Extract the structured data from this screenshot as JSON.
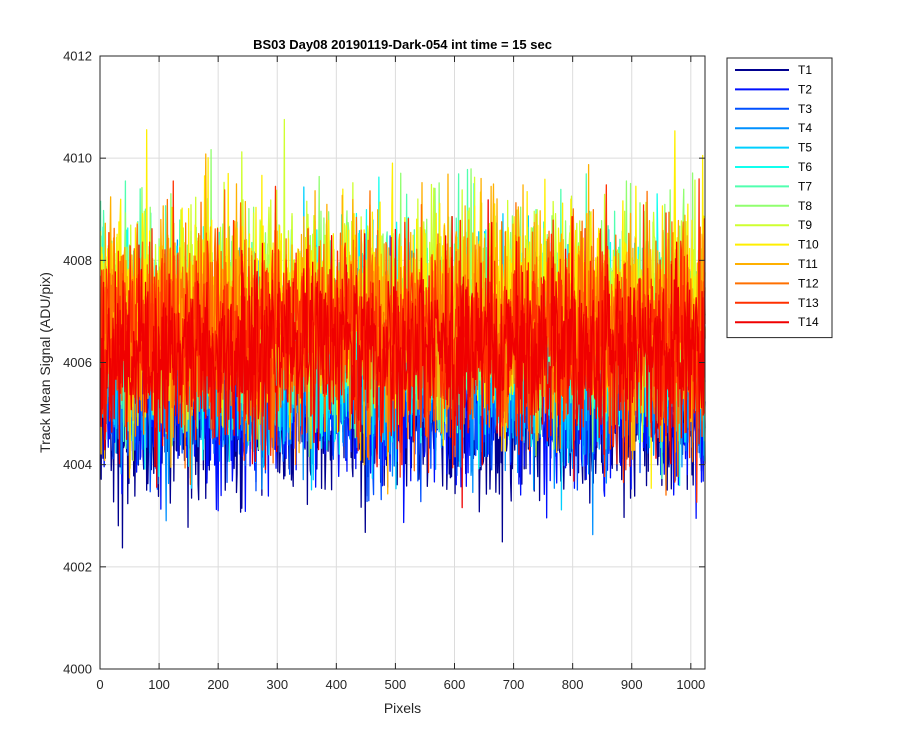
{
  "chart_data": {
    "type": "line",
    "title": "BS03 Day08 20190119-Dark-054 int time = 15 sec",
    "xlabel": "Pixels",
    "ylabel": "Track Mean Signal (ADU/pix)",
    "xlim": [
      0,
      1024
    ],
    "ylim": [
      4000,
      4012
    ],
    "xticks": [
      0,
      100,
      200,
      300,
      400,
      500,
      600,
      700,
      800,
      900,
      1000
    ],
    "yticks": [
      4000,
      4002,
      4004,
      4006,
      4008,
      4010,
      4012
    ],
    "grid": true,
    "legend_position": "outside-top-right",
    "series": [
      {
        "name": "T1",
        "color": "#00008f",
        "mean": 4005.0,
        "spread": 0.85
      },
      {
        "name": "T2",
        "color": "#0010ff",
        "mean": 4005.3,
        "spread": 0.85
      },
      {
        "name": "T3",
        "color": "#0050ff",
        "mean": 4005.6,
        "spread": 0.85
      },
      {
        "name": "T4",
        "color": "#0090ff",
        "mean": 4005.9,
        "spread": 0.9
      },
      {
        "name": "T5",
        "color": "#00d0ff",
        "mean": 4006.2,
        "spread": 0.95
      },
      {
        "name": "T6",
        "color": "#10ffef",
        "mean": 4006.5,
        "spread": 0.95
      },
      {
        "name": "T7",
        "color": "#50ffaf",
        "mean": 4006.7,
        "spread": 0.95
      },
      {
        "name": "T8",
        "color": "#90ff6f",
        "mean": 4006.9,
        "spread": 1.0
      },
      {
        "name": "T9",
        "color": "#cfff30",
        "mean": 4007.0,
        "spread": 1.0
      },
      {
        "name": "T10",
        "color": "#ffef00",
        "mean": 4007.0,
        "spread": 1.0
      },
      {
        "name": "T11",
        "color": "#ffb000",
        "mean": 4006.8,
        "spread": 1.0
      },
      {
        "name": "T12",
        "color": "#ff7000",
        "mean": 4006.6,
        "spread": 1.0
      },
      {
        "name": "T13",
        "color": "#ff3000",
        "mean": 4006.4,
        "spread": 0.95
      },
      {
        "name": "T14",
        "color": "#f00000",
        "mean": 4006.2,
        "spread": 0.9
      }
    ]
  }
}
